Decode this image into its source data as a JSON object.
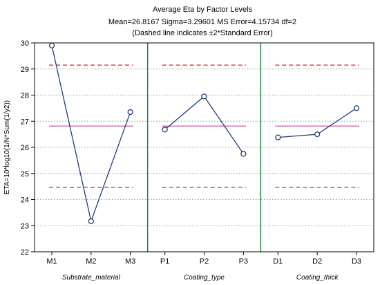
{
  "chart_data": {
    "type": "line",
    "title": "Average Eta by Factor Levels",
    "subtitle": "Mean=26.8167   Sigma=3.29601   MS Error=4.15734   df=2",
    "note": "(Dashed line indicates ±2*Standard Error)",
    "ylabel": "ETA=10*log10(1/N*Sum(1/y2))",
    "ylim": [
      22,
      30
    ],
    "yticks": [
      22,
      23,
      24,
      25,
      26,
      27,
      28,
      29,
      30
    ],
    "grid": "horizontal dotted",
    "mean": 26.8167,
    "upper_limit": 29.15,
    "lower_limit": 24.47,
    "factors": [
      {
        "name": "Substrate_material",
        "levels": [
          "M1",
          "M2",
          "M3"
        ],
        "values": [
          29.9,
          23.17,
          27.35
        ]
      },
      {
        "name": "Coating_type",
        "levels": [
          "P1",
          "P2",
          "P3"
        ],
        "values": [
          26.68,
          27.95,
          25.75
        ]
      },
      {
        "name": "Coating_thick",
        "levels": [
          "D1",
          "D2",
          "D3"
        ],
        "values": [
          26.38,
          26.5,
          27.5
        ]
      }
    ],
    "colors": {
      "series": "#1f3a7a",
      "mean_line": "#c040a0",
      "limit_line": "#e02020",
      "divider": "#1a8a3a",
      "grid": "#999999"
    }
  }
}
